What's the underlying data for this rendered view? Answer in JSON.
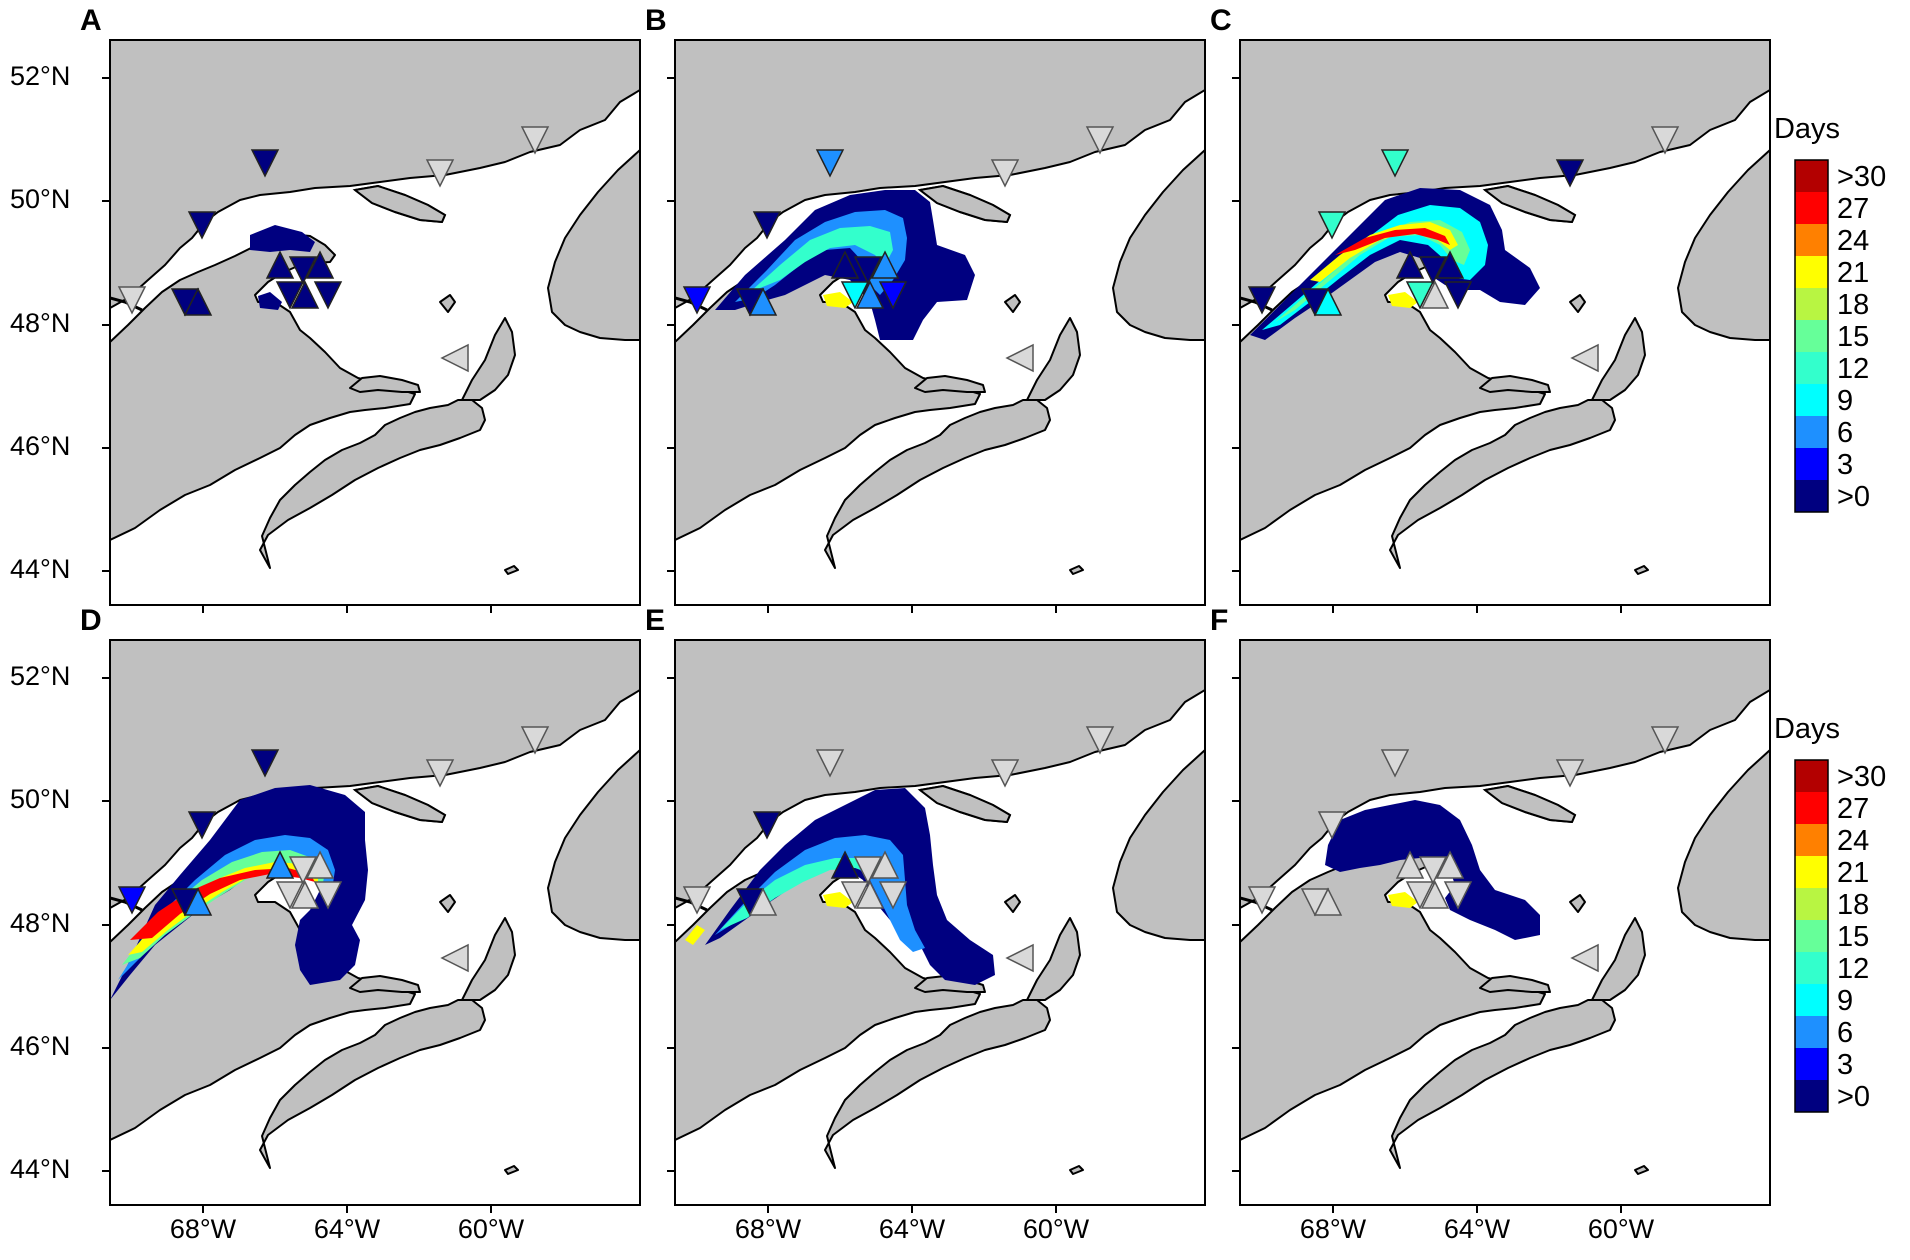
{
  "figure": {
    "panels": [
      "A",
      "B",
      "C",
      "D",
      "E",
      "F"
    ],
    "lat_labels": [
      "52°N",
      "50°N",
      "48°N",
      "46°N",
      "44°N"
    ],
    "lon_labels": [
      "68°W",
      "64°W",
      "60°W"
    ],
    "colorbar": {
      "title": "Days",
      "labels": [
        ">30",
        "27",
        "24",
        "21",
        "18",
        "15",
        "12",
        "9",
        "6",
        "3",
        ">0"
      ],
      "colors": [
        "#b30000",
        "#ff0000",
        "#ff8000",
        "#ffff00",
        "#b8f542",
        "#66ff99",
        "#33ffcc",
        "#00ffff",
        "#1e90ff",
        "#0000ff",
        "#000080"
      ]
    },
    "colors": {
      "land": "#c0c0c0",
      "water": "#ffffff",
      "outline": "#000000",
      "station_empty": "#d9d9d9"
    }
  }
}
